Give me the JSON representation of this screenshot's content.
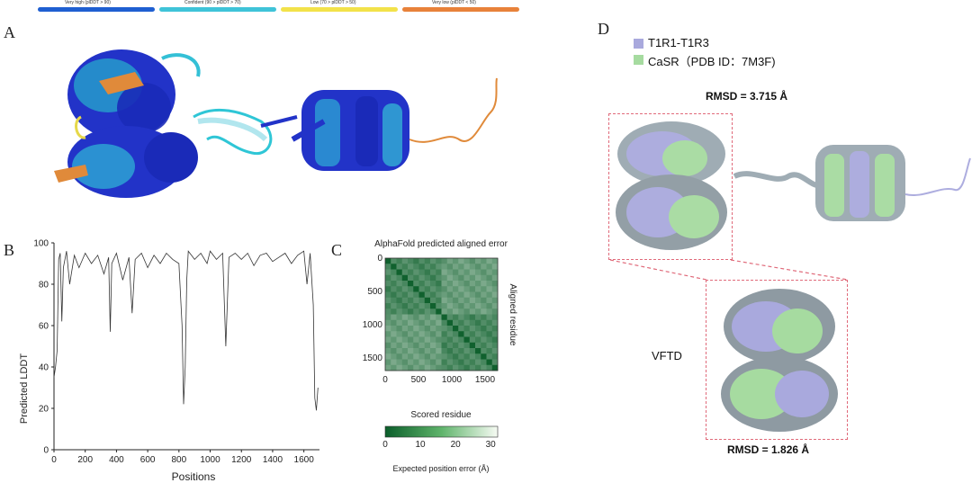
{
  "plddt_legend": [
    {
      "label": "Very high (plDDT > 90)",
      "color": "#1f5fd1"
    },
    {
      "label": "Confident (90 > plDDT > 70)",
      "color": "#3fc3d8"
    },
    {
      "label": "Low (70 > plDDT > 50)",
      "color": "#f2e24a"
    },
    {
      "label": "Very low (plDDT < 50)",
      "color": "#e8823a"
    }
  ],
  "panel_labels": {
    "a": "A",
    "b": "B",
    "c": "C",
    "d": "D"
  },
  "panel_d": {
    "legend": [
      {
        "label": "T1R1-T1R3",
        "color": "#a9a9dd"
      },
      {
        "label": "CaSR（PDB ID：7M3F)",
        "color": "#a6dba0"
      }
    ],
    "rmsd_top": "RMSD = 3.715 Å",
    "rmsd_bottom": "RMSD = 1.826 Å",
    "vftd_label": "VFTD"
  },
  "chart_data": [
    {
      "type": "line",
      "panel": "B",
      "xlabel": "Positions",
      "ylabel": "Predicted LDDT",
      "xlim": [
        0,
        1700
      ],
      "ylim": [
        0,
        100
      ],
      "xticks": [
        0,
        200,
        400,
        600,
        800,
        1000,
        1200,
        1400,
        1600
      ],
      "yticks": [
        0,
        20,
        40,
        60,
        80,
        100
      ],
      "x": [
        0,
        10,
        20,
        30,
        40,
        50,
        60,
        80,
        100,
        130,
        160,
        200,
        240,
        280,
        320,
        350,
        360,
        370,
        400,
        440,
        480,
        500,
        520,
        560,
        600,
        640,
        680,
        720,
        760,
        800,
        820,
        830,
        840,
        850,
        860,
        880,
        900,
        940,
        980,
        1000,
        1040,
        1080,
        1100,
        1120,
        1160,
        1200,
        1240,
        1280,
        1320,
        1360,
        1400,
        1440,
        1480,
        1520,
        1560,
        1600,
        1620,
        1640,
        1660,
        1670,
        1680,
        1690
      ],
      "values": [
        35,
        40,
        48,
        92,
        95,
        62,
        88,
        96,
        80,
        94,
        88,
        95,
        90,
        94,
        85,
        93,
        57,
        90,
        95,
        82,
        93,
        66,
        92,
        95,
        88,
        94,
        90,
        95,
        92,
        90,
        60,
        22,
        40,
        82,
        96,
        94,
        92,
        95,
        90,
        96,
        92,
        95,
        50,
        93,
        95,
        92,
        95,
        89,
        94,
        95,
        91,
        93,
        95,
        90,
        94,
        96,
        80,
        95,
        70,
        25,
        19,
        30
      ]
    },
    {
      "type": "heatmap",
      "panel": "C",
      "title": "AlphaFold predicted aligned error",
      "xlabel": "Scored residue",
      "ylabel": "Aligned residue",
      "xticks": [
        0,
        500,
        1000,
        1500
      ],
      "yticks": [
        0,
        500,
        1000,
        1500
      ],
      "colorbar": {
        "label": "Expected position error (Å)",
        "ticks": [
          0,
          10,
          20,
          30
        ],
        "range": [
          0,
          32
        ],
        "colors": [
          "#0b5e2a",
          "#f7fbf4"
        ]
      },
      "domain_breaks": [
        850
      ],
      "size": 1690
    }
  ]
}
